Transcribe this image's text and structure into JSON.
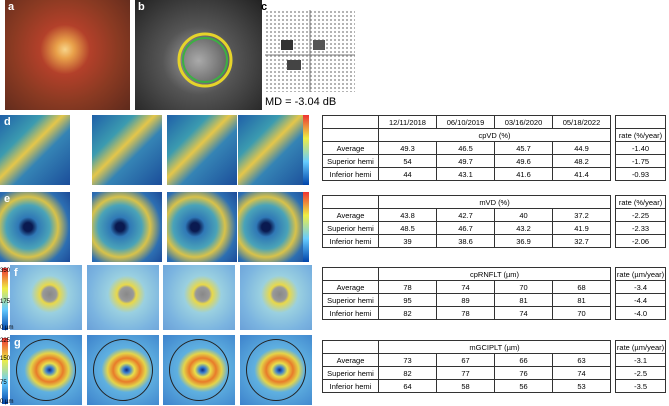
{
  "panel_labels": [
    "a",
    "b",
    "c",
    "d",
    "e",
    "f",
    "g"
  ],
  "md_text": "MD = -3.04 dB",
  "colorbars": [
    {
      "ticks": [
        "350",
        "175",
        "0 µm"
      ]
    },
    {
      "ticks": [
        "225",
        "150",
        "75",
        "0 µm"
      ]
    }
  ],
  "tables": [
    {
      "dates": [
        "12/11/2018",
        "06/10/2019",
        "03/16/2020",
        "05/18/2022"
      ],
      "title": "cpVD (%)",
      "rate_header": "rate (%/year)",
      "rows": [
        {
          "label": "Average",
          "values": [
            "49.3",
            "46.5",
            "45.7",
            "44.9"
          ],
          "rate": "-1.40"
        },
        {
          "label": "Superior hemi",
          "values": [
            "54",
            "49.7",
            "49.6",
            "48.2"
          ],
          "rate": "-1.75"
        },
        {
          "label": "Inferior hemi",
          "values": [
            "44",
            "43.1",
            "41.6",
            "41.4"
          ],
          "rate": "-0.93"
        }
      ]
    },
    {
      "title": "mVD (%)",
      "rate_header": "rate (%/year)",
      "rows": [
        {
          "label": "Average",
          "values": [
            "43.8",
            "42.7",
            "40",
            "37.2"
          ],
          "rate": "-2.25"
        },
        {
          "label": "Superior hemi",
          "values": [
            "48.5",
            "46.7",
            "43.2",
            "41.9"
          ],
          "rate": "-2.33"
        },
        {
          "label": "Inferior hemi",
          "values": [
            "39",
            "38.6",
            "36.9",
            "32.7"
          ],
          "rate": "-2.06"
        }
      ]
    },
    {
      "title": "cpRNFLT (µm)",
      "rate_header": "rate (µm/year)",
      "rows": [
        {
          "label": "Average",
          "values": [
            "78",
            "74",
            "70",
            "68"
          ],
          "rate": "-3.4"
        },
        {
          "label": "Superior hemi",
          "values": [
            "95",
            "89",
            "81",
            "81"
          ],
          "rate": "-4.4"
        },
        {
          "label": "Inferior hemi",
          "values": [
            "82",
            "78",
            "74",
            "70"
          ],
          "rate": "-4.0"
        }
      ]
    },
    {
      "title": "mGCIPLT (µm)",
      "rate_header": "rate (µm/year)",
      "rows": [
        {
          "label": "Average",
          "values": [
            "73",
            "67",
            "66",
            "63"
          ],
          "rate": "-3.1"
        },
        {
          "label": "Superior hemi",
          "values": [
            "82",
            "77",
            "76",
            "74"
          ],
          "rate": "-2.5"
        },
        {
          "label": "Inferior hemi",
          "values": [
            "64",
            "58",
            "56",
            "53"
          ],
          "rate": "-3.5"
        }
      ]
    }
  ]
}
